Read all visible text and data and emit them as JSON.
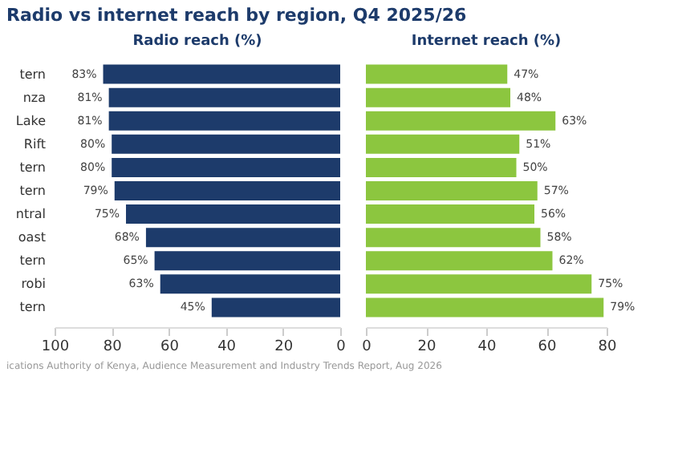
{
  "chart_data": [
    {
      "type": "bar",
      "orientation": "horizontal",
      "title": "Radio vs internet reach by region, Q4 2025/26",
      "subtitle": "Radio reach (%)",
      "categories": [
        "tern",
        "nza",
        "Lake",
        "Rift",
        "tern",
        "tern",
        "ntral",
        "oast",
        "tern",
        "robi",
        "tern"
      ],
      "values": [
        83,
        81,
        81,
        80,
        80,
        79,
        75,
        68,
        65,
        63,
        45
      ],
      "value_labels": [
        "83%",
        "81%",
        "81%",
        "80%",
        "80%",
        "79%",
        "75%",
        "68%",
        "65%",
        "63%",
        "45%"
      ],
      "color": "#1d3b6b",
      "xlim": [
        100,
        0
      ],
      "xticks": [
        100,
        80,
        60,
        40,
        20,
        0
      ],
      "grid": false,
      "annotations": [
        "ications Authority of Kenya, Audience Measurement and Industry Trends Report, Aug 2026"
      ]
    },
    {
      "type": "bar",
      "orientation": "horizontal",
      "subtitle": "Internet reach (%)",
      "values": [
        47,
        48,
        63,
        51,
        50,
        57,
        56,
        58,
        62,
        75,
        79
      ],
      "value_labels": [
        "47%",
        "48%",
        "63%",
        "51%",
        "50%",
        "57%",
        "56%",
        "58%",
        "62%",
        "75%",
        "79%"
      ],
      "color": "#8cc63f",
      "xlim": [
        0,
        80
      ],
      "xticks": [
        0,
        20,
        40,
        60,
        80
      ],
      "grid": false,
      "tick_labels": "x"
    }
  ]
}
